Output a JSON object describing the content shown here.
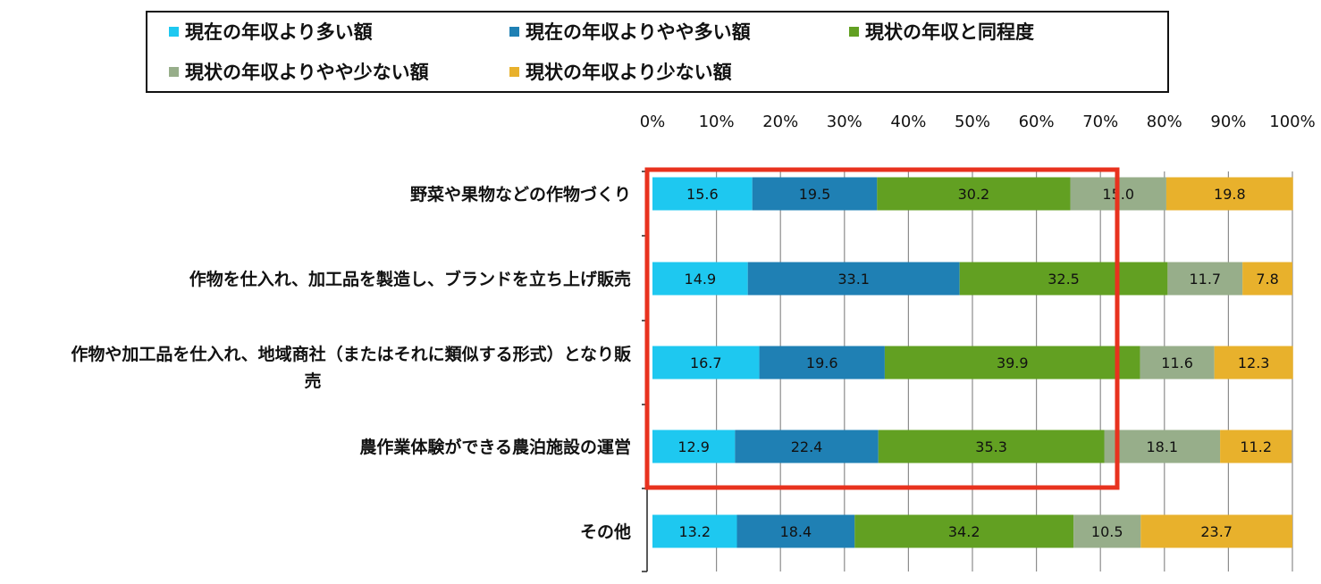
{
  "chart_data": {
    "type": "bar",
    "orientation": "horizontal",
    "stacked": "percent",
    "xlim": [
      0,
      100
    ],
    "x_ticks": [
      "0%",
      "10%",
      "20%",
      "30%",
      "40%",
      "50%",
      "60%",
      "70%",
      "80%",
      "90%",
      "100%"
    ],
    "grid": true,
    "legend_position": "top",
    "categories": [
      [
        "野菜や果物などの作物づくり"
      ],
      [
        "作物を仕入れ、加工品を製造し、ブランドを立ち上げ販売"
      ],
      [
        "作物や加工品を仕入れ、地域商社（またはそれに類似する形式）となり販",
        "売"
      ],
      [
        "農作業体験ができる農泊施設の運営"
      ],
      [
        "その他"
      ]
    ],
    "series": [
      {
        "name": "現在の年収より多い額",
        "color": "#1ec8f0",
        "values": [
          15.6,
          14.9,
          16.7,
          12.9,
          13.2
        ]
      },
      {
        "name": "現在の年収よりやや多い額",
        "color": "#1f80b4",
        "values": [
          19.5,
          33.1,
          19.6,
          22.4,
          18.4
        ]
      },
      {
        "name": "現状の年収と同程度",
        "color": "#62a022",
        "values": [
          30.2,
          32.5,
          39.9,
          35.3,
          34.2
        ]
      },
      {
        "name": "現状の年収よりやや少ない額",
        "color": "#97ae8a",
        "values": [
          15.0,
          11.7,
          11.6,
          18.1,
          10.5
        ]
      },
      {
        "name": "現状の年収より少ない額",
        "color": "#e8b12c",
        "values": [
          19.8,
          7.8,
          12.3,
          11.2,
          23.7
        ]
      }
    ],
    "data_labels": [
      [
        "15.6",
        "19.5",
        "30.2",
        "15.0",
        "19.8"
      ],
      [
        "14.9",
        "33.1",
        "32.5",
        "11.7",
        "7.8"
      ],
      [
        "16.7",
        "19.6",
        "39.9",
        "11.6",
        "12.3"
      ],
      [
        "12.9",
        "22.4",
        "35.3",
        "18.1",
        "11.2"
      ],
      [
        "13.2",
        "18.4",
        "34.2",
        "10.5",
        "23.7"
      ]
    ],
    "highlight_box": {
      "color": "#e8321e",
      "covers_categories": [
        0,
        1,
        2,
        3
      ],
      "covers_series": [
        0,
        1,
        2
      ]
    }
  }
}
